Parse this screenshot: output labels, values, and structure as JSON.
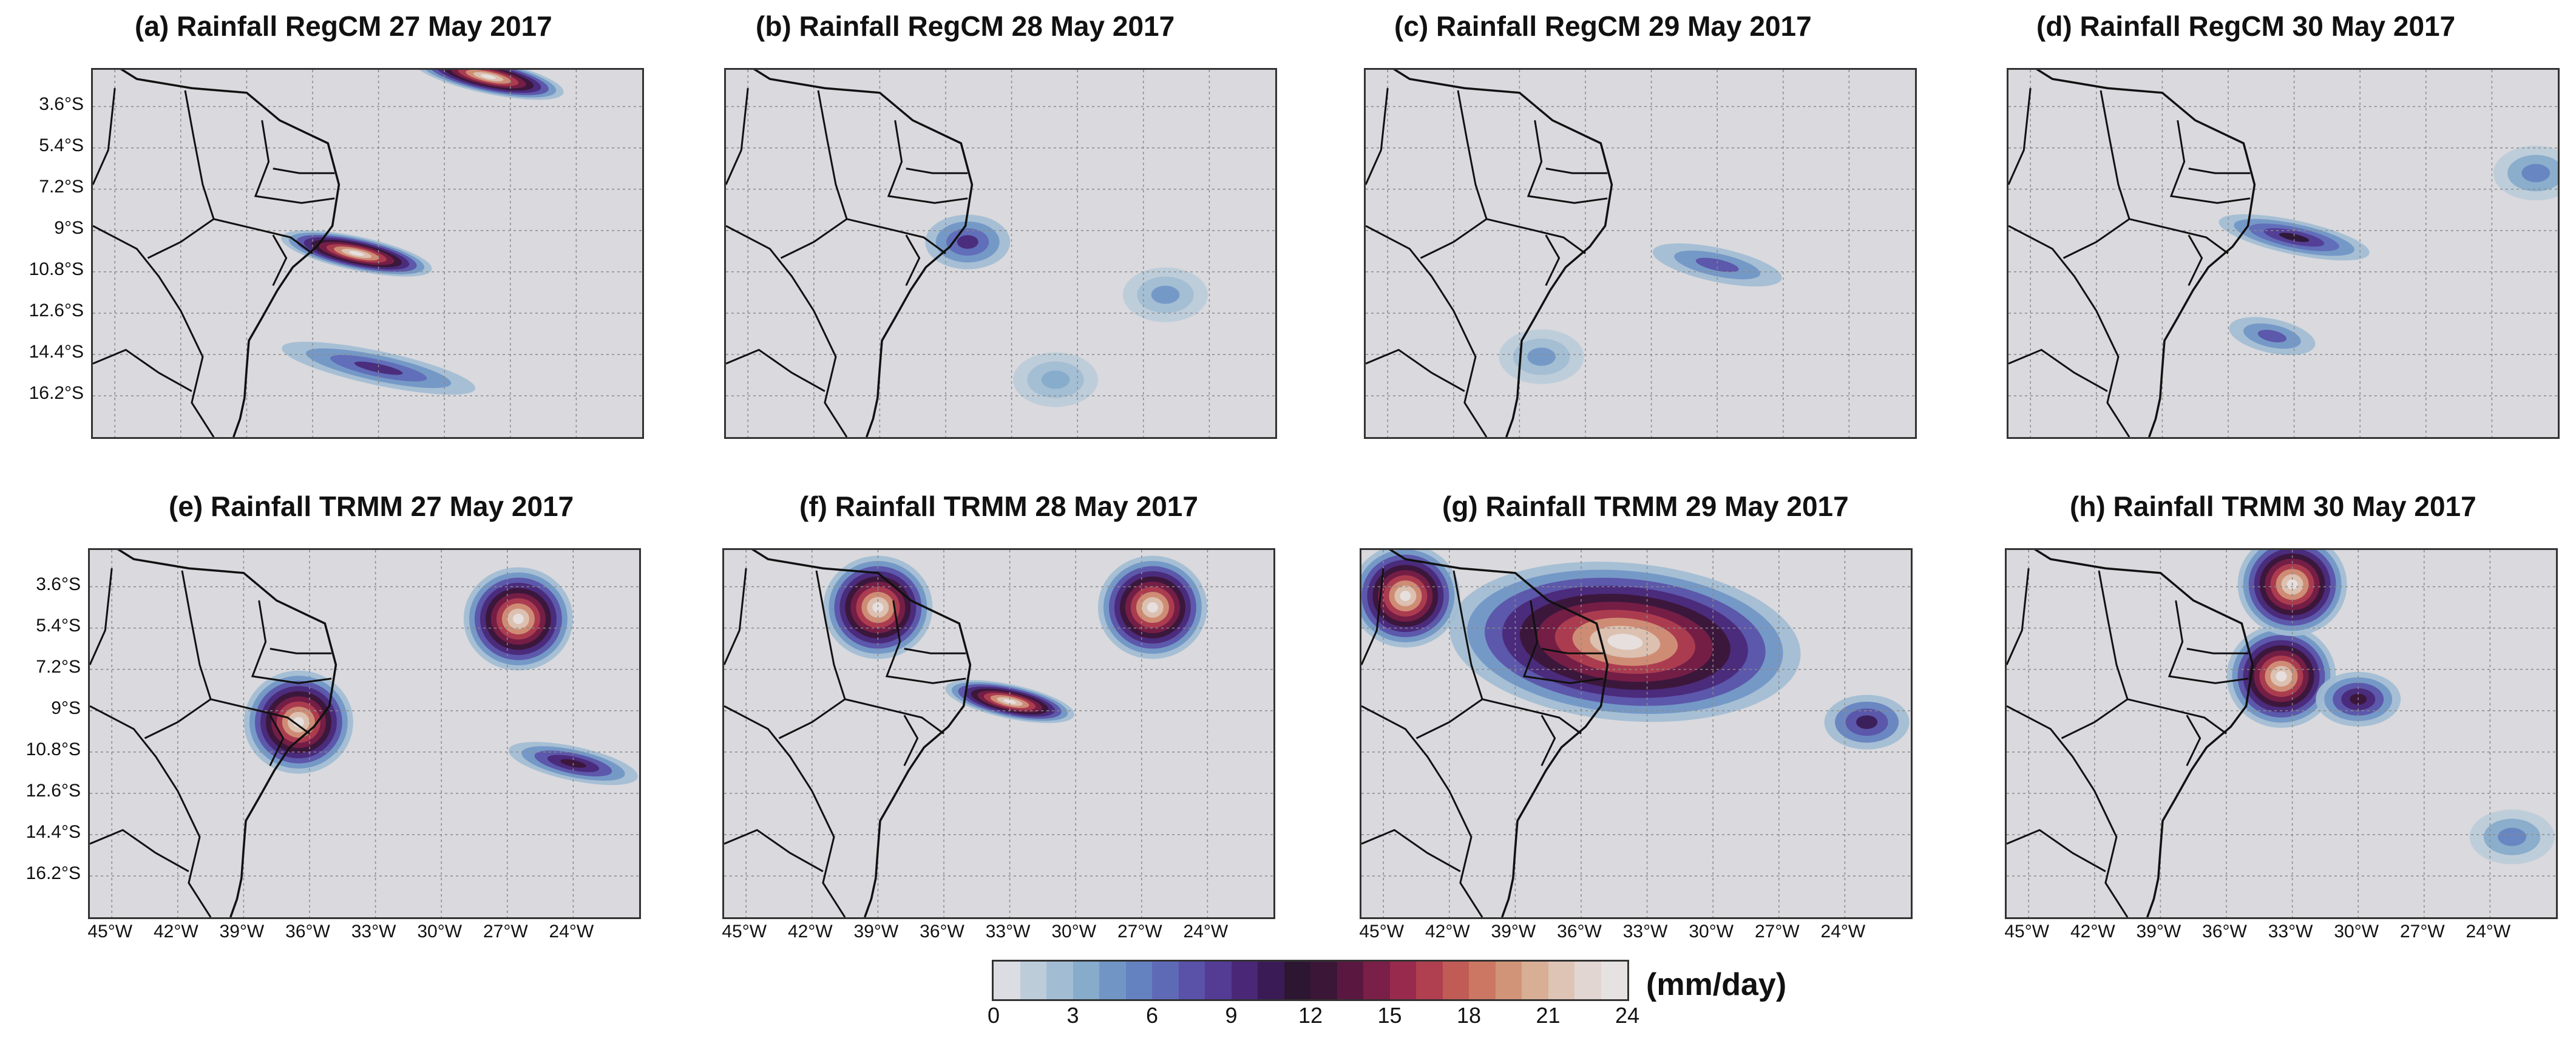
{
  "panels": [
    {
      "title": "(a) Rainfall RegCM  27 May 2017",
      "source": "RegCM",
      "show_lat": true,
      "show_lon": false
    },
    {
      "title": "(b) Rainfall RegCM  28 May 2017",
      "source": "RegCM",
      "show_lat": false,
      "show_lon": false
    },
    {
      "title": "(c) Rainfall RegCM 29 May 2017",
      "source": "RegCM",
      "show_lat": false,
      "show_lon": false
    },
    {
      "title": "(d) Rainfall RegCM 30 May 2017",
      "source": "RegCM",
      "show_lat": false,
      "show_lon": false
    },
    {
      "title": "(e) Rainfall TRMM 27 May 2017",
      "source": "TRMM",
      "show_lat": true,
      "show_lon": true
    },
    {
      "title": "(f) Rainfall TRMM  28 May 2017",
      "source": "TRMM",
      "show_lat": false,
      "show_lon": true
    },
    {
      "title": "(g) Rainfall TRMM 29 May 2017",
      "source": "TRMM",
      "show_lat": false,
      "show_lon": true
    },
    {
      "title": "(h) Rainfall TRMM  30 May 2017",
      "source": "TRMM",
      "show_lat": false,
      "show_lon": true
    }
  ],
  "lat_ticks": [
    "3.6°S",
    "5.4°S",
    "7.2°S",
    "9°S",
    "10.8°S",
    "12.6°S",
    "14.4°S",
    "16.2°S"
  ],
  "lon_ticks": [
    "45°W",
    "42°W",
    "39°W",
    "36°W",
    "33°W",
    "30°W",
    "27°W",
    "24°W"
  ],
  "colorbar": {
    "unit": "(mm/day)",
    "ticks": [
      "0",
      "3",
      "6",
      "9",
      "12",
      "15",
      "18",
      "21",
      "24"
    ],
    "colors": [
      "#dcdce3",
      "#bcccd9",
      "#a2bdd3",
      "#86abcb",
      "#7196c5",
      "#6582c0",
      "#5f6ab7",
      "#5a52a8",
      "#543b94",
      "#4a2777",
      "#3a1b56",
      "#2d1631",
      "#3b1636",
      "#5a1840",
      "#7a1f48",
      "#982a4d",
      "#b03f50",
      "#c15b55",
      "#cb7763",
      "#d19478",
      "#d8ae95",
      "#ddc4b5",
      "#e2d6d2",
      "#e6e2e2"
    ]
  },
  "chart_data": {
    "type": "heatmap",
    "title": "",
    "variable": "Rainfall",
    "unit": "mm/day",
    "value_range": [
      0,
      24
    ],
    "x_axis": {
      "ticks": [
        "45°W",
        "42°W",
        "39°W",
        "36°W",
        "33°W",
        "30°W",
        "27°W",
        "24°W"
      ],
      "range_deg": [
        -46,
        -21
      ]
    },
    "y_axis": {
      "ticks": [
        "3.6°S",
        "5.4°S",
        "7.2°S",
        "9°S",
        "10.8°S",
        "12.6°S",
        "14.4°S",
        "16.2°S"
      ],
      "range_deg": [
        -18,
        -2
      ]
    },
    "grid": true,
    "panels": [
      {
        "id": "a",
        "source": "RegCM",
        "date": "27 May 2017",
        "features": [
          {
            "lon": -34,
            "lat": -10.0,
            "lon_extent": [
              -37,
              -30
            ],
            "value": 24,
            "desc": "intense band east of coast"
          },
          {
            "lon": -33,
            "lat": -15.0,
            "lon_extent": [
              -39,
              -30
            ],
            "value": 9,
            "desc": "southern band"
          },
          {
            "lon": -28,
            "lat": -2.3,
            "lon_extent": [
              -32,
              -25
            ],
            "value": 24,
            "desc": "northern edge band"
          }
        ]
      },
      {
        "id": "b",
        "source": "RegCM",
        "date": "28 May 2017",
        "features": [
          {
            "lon": -35,
            "lat": -9.5,
            "value": 9,
            "desc": "coastal band"
          },
          {
            "lon": -26,
            "lat": -11.8,
            "value": 4,
            "desc": "offshore patch"
          },
          {
            "lon": -31,
            "lat": -15.5,
            "value": 3,
            "desc": "southern patch"
          }
        ]
      },
      {
        "id": "c",
        "source": "RegCM",
        "date": "29 May 2017",
        "features": [
          {
            "lon": -30,
            "lat": -10.5,
            "lon_extent": [
              -33,
              -27
            ],
            "value": 7,
            "desc": "offshore band"
          },
          {
            "lon": -38,
            "lat": -14.5,
            "value": 4,
            "desc": "coastal patch"
          }
        ]
      },
      {
        "id": "d",
        "source": "RegCM",
        "date": "30 May 2017",
        "features": [
          {
            "lon": -33,
            "lat": -9.3,
            "lon_extent": [
              -36,
              -29
            ],
            "value": 11,
            "desc": "offshore band"
          },
          {
            "lon": -34,
            "lat": -13.6,
            "lon_extent": [
              -36,
              -32
            ],
            "value": 7,
            "desc": "southern band"
          },
          {
            "lon": -22,
            "lat": -6.5,
            "value": 5,
            "desc": "east patch"
          }
        ]
      },
      {
        "id": "e",
        "source": "TRMM",
        "date": "27 May 2017",
        "features": [
          {
            "lon": -36.5,
            "lat": -9.5,
            "value": 24,
            "desc": "coastal maximum"
          },
          {
            "lon": -26.5,
            "lat": -5.0,
            "value": 24,
            "desc": "offshore cell"
          },
          {
            "lon": -24,
            "lat": -11.3,
            "lon_extent": [
              -28,
              -22
            ],
            "value": 12,
            "desc": "southeast band"
          }
        ]
      },
      {
        "id": "f",
        "source": "TRMM",
        "date": "28 May 2017",
        "features": [
          {
            "lon": -33,
            "lat": -8.6,
            "lon_extent": [
              -36,
              -30
            ],
            "value": 24,
            "desc": "coastal maximum"
          },
          {
            "lon": -26.5,
            "lat": -4.5,
            "value": 24,
            "desc": "northeast cell"
          },
          {
            "lon": -39,
            "lat": -4.5,
            "value": 24,
            "desc": "north coast cell"
          }
        ]
      },
      {
        "id": "g",
        "source": "TRMM",
        "date": "29 May 2017",
        "features": [
          {
            "lon": -34,
            "lat": -6.0,
            "lon_extent": [
              -40,
              -28
            ],
            "value": 24,
            "desc": "large northeast Brazil maximum"
          },
          {
            "lon": -44,
            "lat": -4.0,
            "value": 24,
            "desc": "northwest cell"
          },
          {
            "lon": -23,
            "lat": -9.5,
            "value": 10,
            "desc": "east band"
          }
        ]
      },
      {
        "id": "h",
        "source": "TRMM",
        "date": "30 May 2017",
        "features": [
          {
            "lon": -33.5,
            "lat": -7.5,
            "value": 24,
            "desc": "coastal maximum"
          },
          {
            "lon": -33,
            "lat": -3.5,
            "value": 24,
            "desc": "northern cell"
          },
          {
            "lon": -30,
            "lat": -8.5,
            "value": 12,
            "desc": "offshore band"
          },
          {
            "lon": -23,
            "lat": -14.5,
            "value": 5,
            "desc": "southeast patch"
          }
        ]
      }
    ]
  }
}
